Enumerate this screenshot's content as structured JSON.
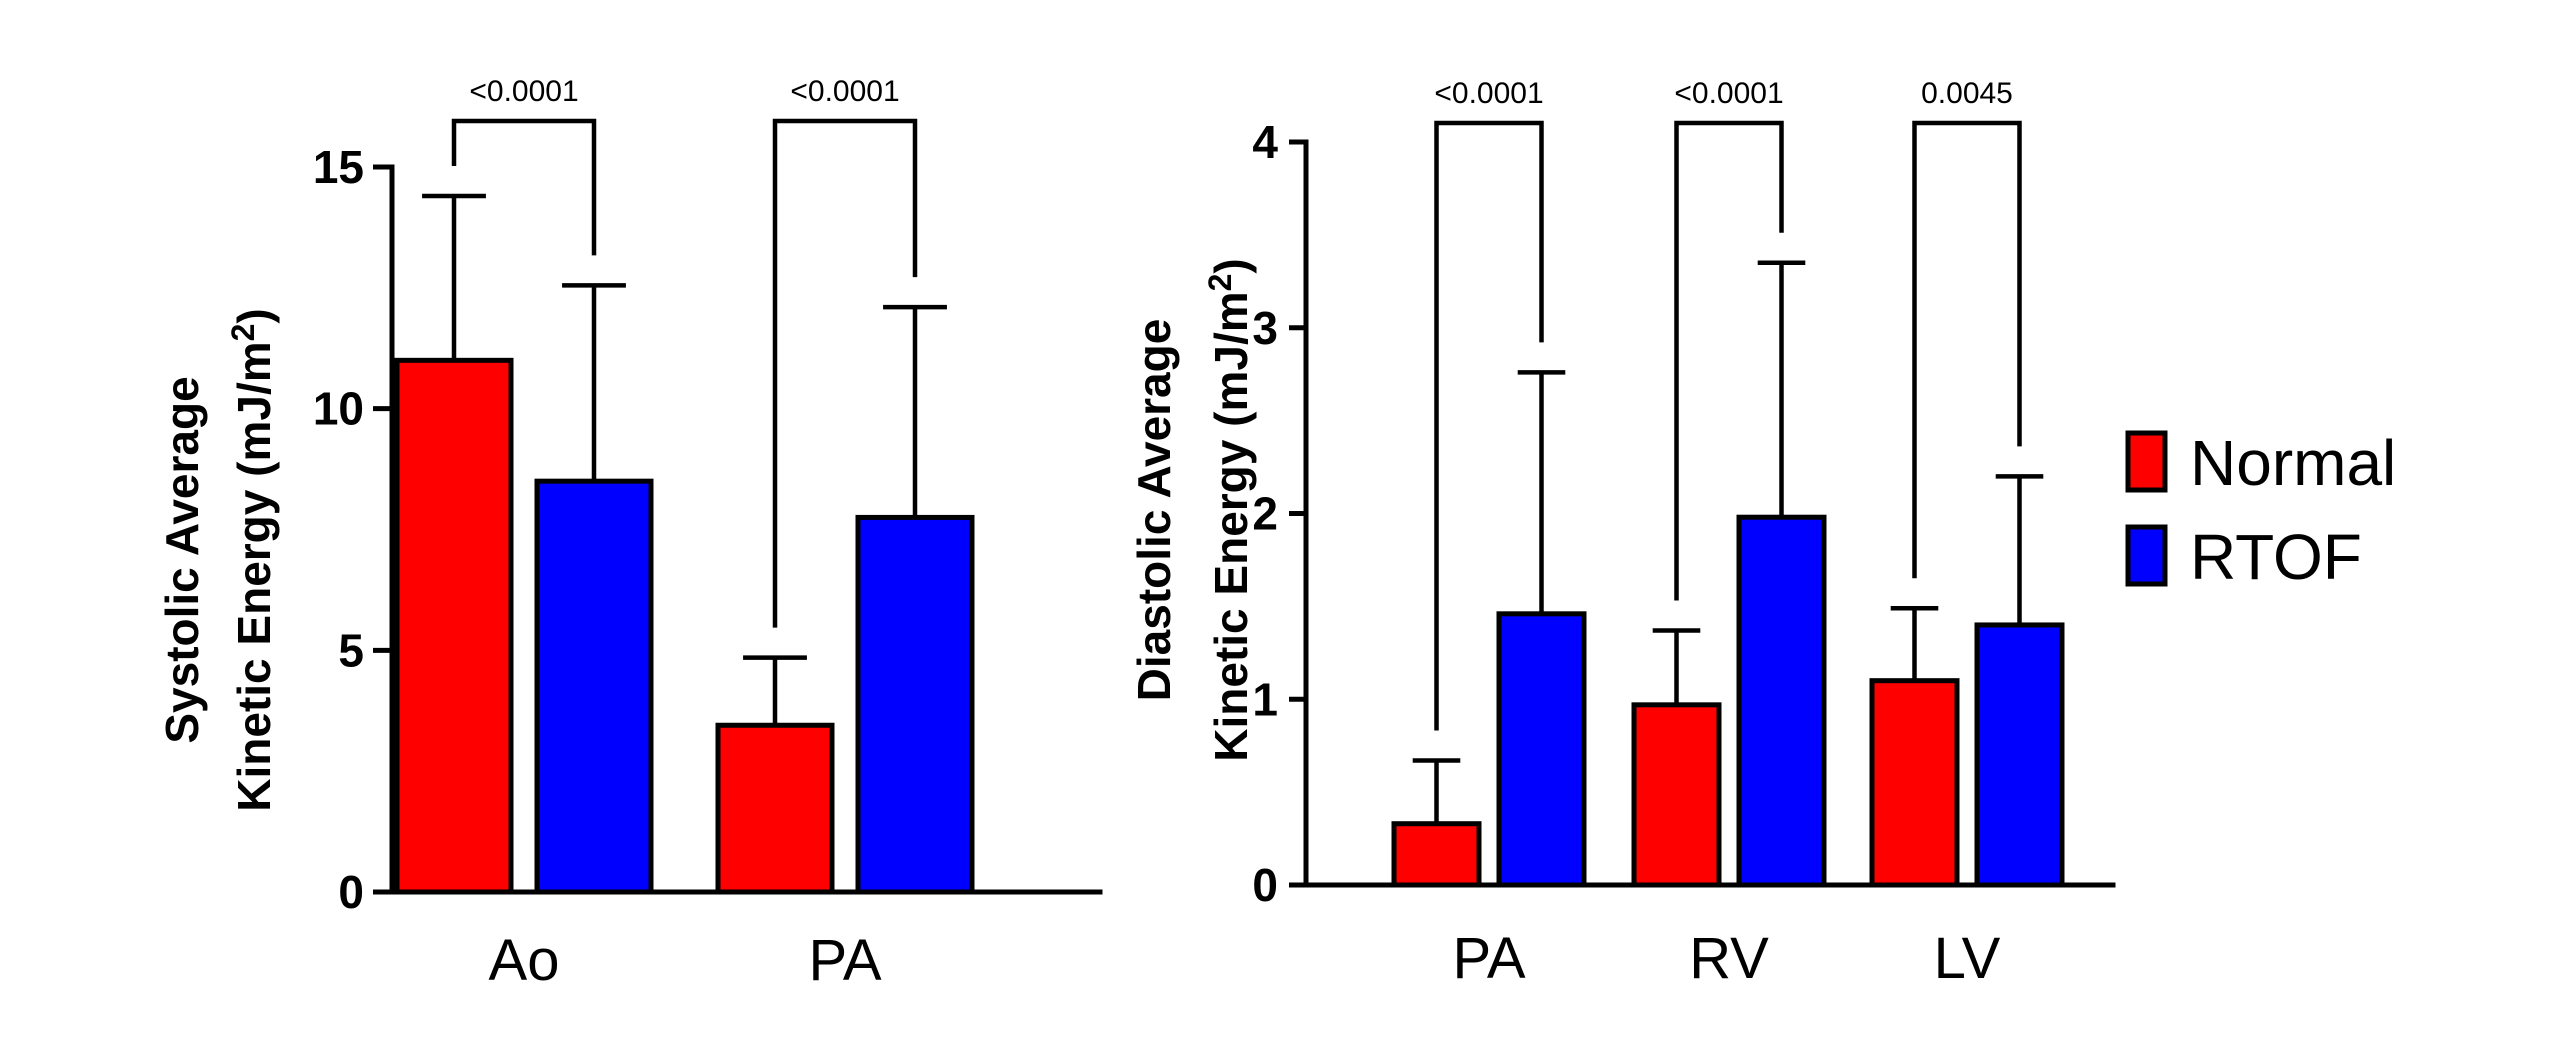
{
  "colors": {
    "normal": "#ff0000",
    "rtof": "#0000ff"
  },
  "legend": [
    {
      "label": "Normal",
      "color": "#ff0000"
    },
    {
      "label": "RTOF",
      "color": "#0000ff"
    }
  ],
  "chart_data": [
    {
      "type": "bar",
      "ylabel_line1": "Systolic Average",
      "ylabel_line2_prefix": "Kinetic  Energy (mJ/m",
      "ylabel_sup": "2",
      "ylabel_suffix": ")",
      "categories": [
        "Ao",
        "PA"
      ],
      "ylim": [
        0,
        15
      ],
      "yticks": [
        0,
        5,
        10,
        15
      ],
      "series": [
        {
          "name": "Normal",
          "values": [
            11.0,
            3.45
          ],
          "errors": [
            3.4,
            1.4
          ]
        },
        {
          "name": "RTOF",
          "values": [
            8.5,
            7.75
          ],
          "errors": [
            4.05,
            4.35
          ]
        }
      ],
      "comparisons": [
        {
          "category": "Ao",
          "label": "<0.0001"
        },
        {
          "category": "PA",
          "label": "<0.0001"
        }
      ]
    },
    {
      "type": "bar",
      "ylabel_line1": "Diastolic Average",
      "ylabel_line2_prefix": "Kinetic  Energy (mJ/m",
      "ylabel_sup": "2",
      "ylabel_suffix": ")",
      "categories": [
        "PA",
        "RV",
        "LV"
      ],
      "ylim": [
        0,
        4
      ],
      "yticks": [
        0,
        1,
        2,
        3,
        4
      ],
      "series": [
        {
          "name": "Normal",
          "values": [
            0.33,
            0.97,
            1.1
          ],
          "errors": [
            0.34,
            0.4,
            0.39
          ]
        },
        {
          "name": "RTOF",
          "values": [
            1.46,
            1.98,
            1.4
          ],
          "errors": [
            1.3,
            1.37,
            0.8
          ]
        }
      ],
      "comparisons": [
        {
          "category": "PA",
          "label": "<0.0001"
        },
        {
          "category": "RV",
          "label": "<0.0001"
        },
        {
          "category": "LV",
          "label": "0.0045"
        }
      ]
    }
  ]
}
